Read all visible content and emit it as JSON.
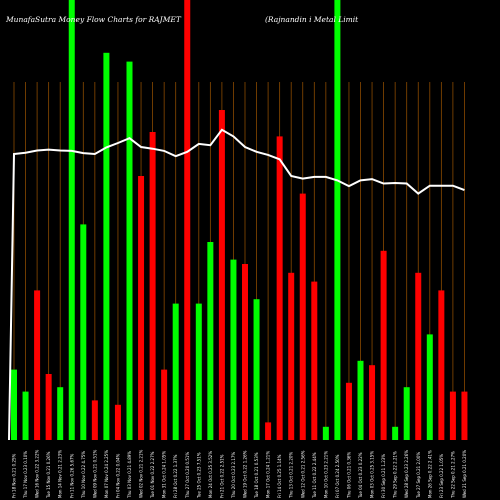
{
  "chart_data": {
    "type": "bar",
    "title_left": "MunafaSutra  Money Flow  Charts for RAJMET",
    "title_right": "(Rajnandin                    i   Metal Limit",
    "colors": {
      "up": "#00ff00",
      "down": "#ff0000",
      "grid": "#8a4a00",
      "line": "#ffffff",
      "background": "#000000"
    },
    "ylim": [
      0,
      100
    ],
    "line_ylim": [
      0,
      100
    ],
    "grid": "vertical",
    "categories": [
      "Fri 18 Nov",
      "Thu 17 Nov",
      "Wed 16 Nov",
      "Tue 15 Nov",
      "Mon 14 Nov",
      "Fri 11 Nov",
      "Thu 10 Nov",
      "Wed 09 Nov",
      "Mon 07 Nov",
      "Fri 04 Nov",
      "Thu 03 Nov",
      "Wed 02 Nov",
      "Tue 01 Nov",
      "Mon 31 Oct",
      "Fri 28 Oct",
      "Thu 27 Oct",
      "Tue 25 Oct",
      "Mon 24 Oct",
      "Fri 21 Oct",
      "Thu 20 Oct",
      "Wed 19 Oct",
      "Tue 18 Oct",
      "Mon 17 Oct",
      "Fri 14 Oct",
      "Thu 13 Oct",
      "Wed 12 Oct",
      "Tue 11 Oct",
      "Mon 10 Oct",
      "Fri 07 Oct",
      "Thu 06 Oct",
      "Tue 04 Oct",
      "Mon 03 Oct",
      "Fri 30 Sep",
      "Thu 29 Sep",
      "Wed 28 Sep",
      "Tue 27 Sep",
      "Mon 26 Sep",
      "Fri 23 Sep",
      "Thu 22 Sep",
      "Wed 21 Sep"
    ],
    "tick_labels": [
      "0.21 0.25%",
      "0.23 0.10%",
      "0.22 3.22%",
      "0.21 0.26%",
      "0.21 2.23%",
      "0.26 5.67%",
      "0.22 4.75%",
      "0.21 0.51%",
      "0.24 2.25%",
      "0.22 0.04%",
      "0.21 4.89%",
      "0.21 2.21%",
      "0.22 2.27%",
      "0.24 1.05%",
      "0.22 1.37%",
      "0.20 0.51%",
      "0.23 7.51%",
      "0.25 3.52%",
      "0.22 2.51%",
      "0.23 2.17%",
      "0.22 1.26%",
      "0.21 0.53%",
      "0.24 1.21%",
      "0.25 1.14%",
      "0.21 2.20%",
      "0.21 2.56%",
      "0.22 2.44%",
      "0.23 2.21%",
      "0.24 2.50%",
      "0.21 0.36%",
      "0.23 0.22%",
      "0.25 3.15%",
      "0.21 1.23%",
      "0.22 2.21%",
      "0.23 2.26%",
      "0.21 2.00%",
      "0.22 2.41%",
      "0.22 1.05%",
      "0.21 2.27%",
      "0.21 0.20%"
    ],
    "values": [
      16,
      11,
      34,
      15,
      12,
      100,
      49,
      9,
      88,
      8,
      86,
      60,
      70,
      16,
      31,
      100,
      31,
      45,
      75,
      41,
      40,
      32,
      4,
      69,
      38,
      56,
      36,
      3,
      100,
      13,
      18,
      17,
      43,
      3,
      12,
      38,
      24,
      34,
      11,
      11
    ],
    "directions": [
      "up",
      "up",
      "down",
      "down",
      "up",
      "up",
      "up",
      "down",
      "up",
      "down",
      "up",
      "down",
      "down",
      "down",
      "up",
      "down",
      "up",
      "up",
      "down",
      "up",
      "down",
      "up",
      "down",
      "down",
      "down",
      "down",
      "down",
      "up",
      "up",
      "down",
      "up",
      "down",
      "down",
      "up",
      "up",
      "down",
      "up",
      "down",
      "down",
      "down"
    ],
    "line_values": [
      65,
      65.3,
      65.8,
      66,
      65.8,
      65.7,
      65.2,
      65,
      66.5,
      67.5,
      68.6,
      66.6,
      66.2,
      65.7,
      64.5,
      65.5,
      67.3,
      67,
      70.5,
      69,
      66.6,
      65.5,
      64.8,
      63.8,
      60,
      59.4,
      59.8,
      59.8,
      59,
      57.7,
      59,
      59.3,
      58.3,
      58.4,
      58.3,
      56,
      57.8,
      57.8,
      57.8,
      56.8
    ]
  }
}
